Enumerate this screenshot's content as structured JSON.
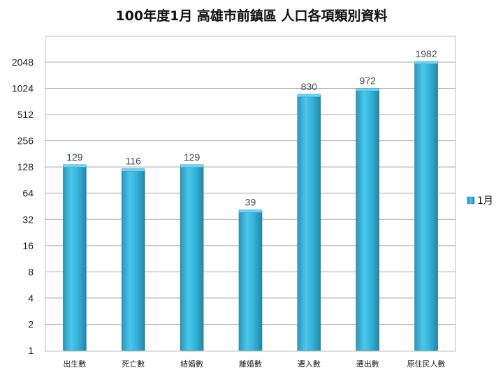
{
  "chart_data": {
    "type": "bar",
    "title": "100年度1月  高雄市前鎮區  人口各項類別資料",
    "categories": [
      "出生數",
      "死亡數",
      "結婚數",
      "離婚數",
      "遷入數",
      "遷出數",
      "原住民人數"
    ],
    "series": [
      {
        "name": "1月",
        "values": [
          129,
          116,
          129,
          39,
          830,
          972,
          1982
        ]
      }
    ],
    "y_scale": "log2",
    "ylim": [
      1,
      2048
    ],
    "y_ticks": [
      1,
      2,
      4,
      8,
      16,
      32,
      64,
      128,
      256,
      512,
      1024,
      2048
    ],
    "grid": true,
    "legend_position": "right",
    "bar_color": "#35b4dc"
  }
}
